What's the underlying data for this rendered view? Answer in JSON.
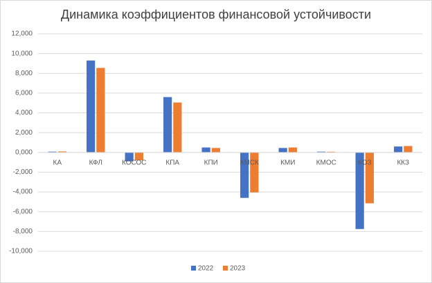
{
  "chart_data": {
    "type": "bar",
    "title": "Динамика коэффициентов финансовой устойчивости",
    "categories": [
      "КА",
      "КФЛ",
      "КОСОС",
      "КПА",
      "КПИ",
      "КМСК",
      "КМИ",
      "КМОС",
      "КОЗ",
      "ККЗ"
    ],
    "series": [
      {
        "name": "2022",
        "color": "#4472c4",
        "values": [
          0.08,
          9.3,
          -0.9,
          5.6,
          0.5,
          -4.6,
          0.45,
          0.08,
          -7.75,
          0.6
        ]
      },
      {
        "name": "2023",
        "color": "#ed7d31",
        "values": [
          0.1,
          8.55,
          -0.8,
          5.05,
          0.45,
          -4.05,
          0.5,
          0.07,
          -5.15,
          0.65
        ]
      }
    ],
    "ylim": [
      -10,
      12
    ],
    "yticks": [
      {
        "value": -10,
        "label": "-10,000"
      },
      {
        "value": -8,
        "label": "-8,000"
      },
      {
        "value": -6,
        "label": "-6,000"
      },
      {
        "value": -4,
        "label": "-4,000"
      },
      {
        "value": -2,
        "label": "-2,000"
      },
      {
        "value": 0,
        "label": "0,000"
      },
      {
        "value": 2,
        "label": "2,000"
      },
      {
        "value": 4,
        "label": "4,000"
      },
      {
        "value": 6,
        "label": "6,000"
      },
      {
        "value": 8,
        "label": "8,000"
      },
      {
        "value": 10,
        "label": "10,000"
      },
      {
        "value": 12,
        "label": "12,000"
      }
    ],
    "grid": true,
    "legend": "bottom"
  }
}
